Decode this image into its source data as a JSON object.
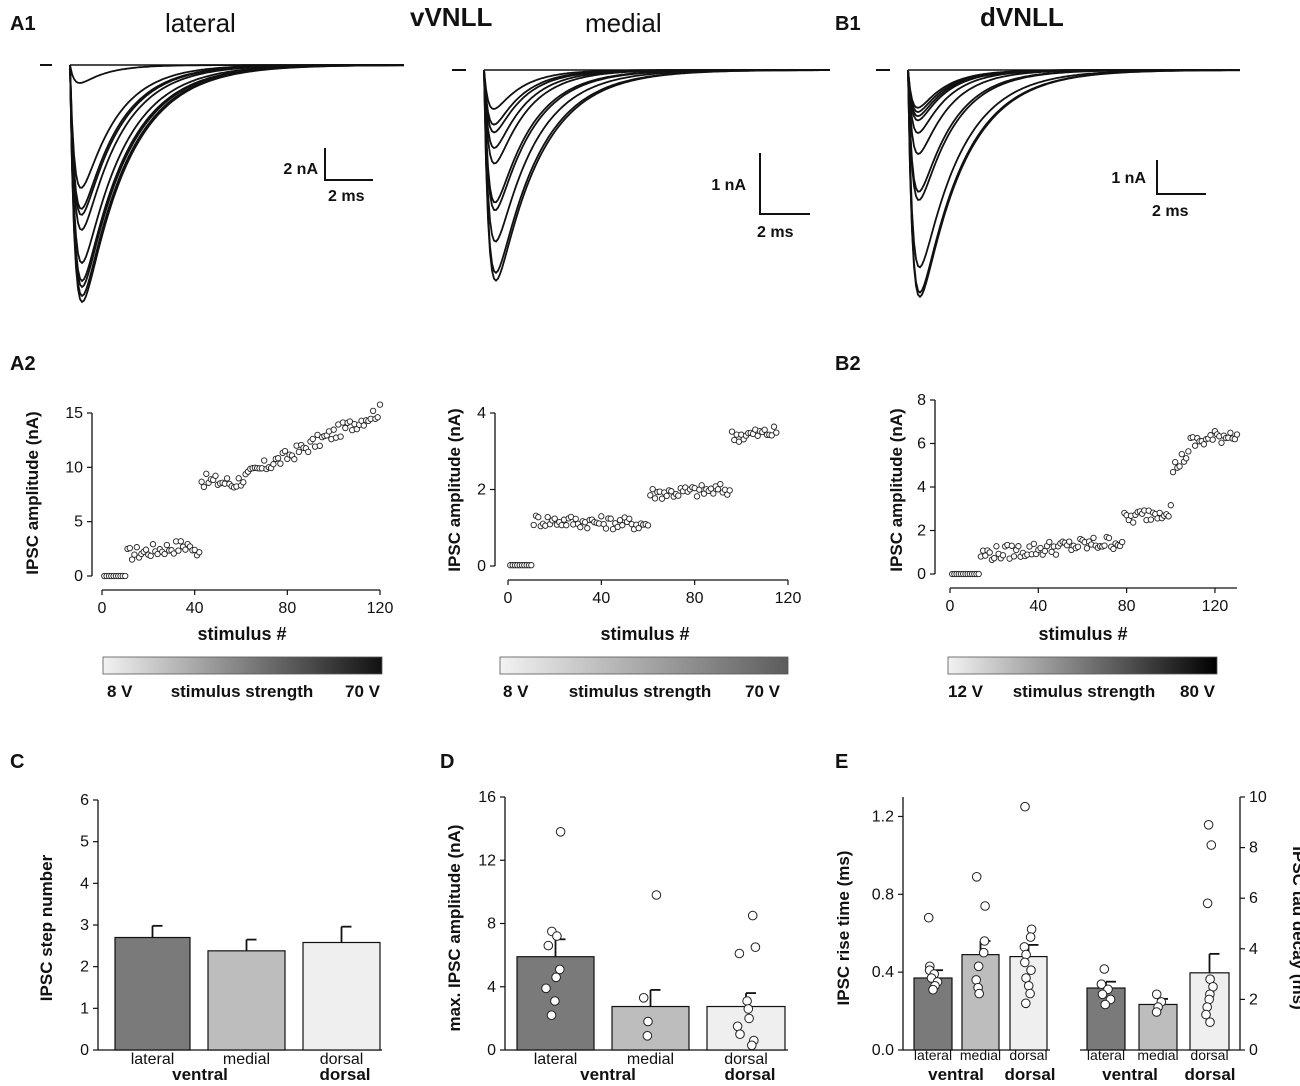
{
  "colors": {
    "ink": "#111111",
    "lateral": "#7a7a7a",
    "medial": "#bdbdbd",
    "dorsal": "#efefef"
  },
  "traces": {
    "A1": {
      "panel_label": "A1",
      "group_label": "vVNLL",
      "left": {
        "title": "lateral",
        "peaks": [
          0.6,
          4.1,
          4.8,
          5.0,
          5.5,
          6.6,
          7.2,
          7.4,
          7.7,
          7.9
        ],
        "scale": {
          "y_label": "2 nA",
          "x_label": "2 ms"
        }
      },
      "right": {
        "title": "medial",
        "peaks": [
          0.5,
          0.7,
          0.8,
          1.0,
          1.2,
          1.7,
          1.8,
          2.2,
          2.6,
          2.7
        ],
        "scale": {
          "y_label": "1 nA",
          "x_label": "2 ms"
        }
      }
    },
    "B1": {
      "panel_label": "B1",
      "group_label": "dVNLL",
      "peaks": [
        0.45,
        0.5,
        0.55,
        0.6,
        0.75,
        1.0,
        1.45,
        1.55,
        2.35,
        2.65,
        2.7
      ],
      "scale": {
        "y_label": "1 nA",
        "x_label": "2 ms"
      }
    }
  },
  "chart_data": [
    {
      "id": "A2-lateral",
      "type": "scatter",
      "panel_label": "A2",
      "xlabel": "stimulus #",
      "ylabel": "IPSC amplitude (nA)",
      "xlim": [
        0,
        120
      ],
      "ylim": [
        0,
        15
      ],
      "xticks": [
        0,
        40,
        80,
        120
      ],
      "yticks": [
        0,
        5,
        10,
        15
      ],
      "segments": [
        {
          "x": [
            1,
            10
          ],
          "y": [
            0.0,
            0.0
          ]
        },
        {
          "x": [
            11,
            38
          ],
          "y": [
            2.0,
            2.9
          ]
        },
        {
          "x": [
            39,
            42
          ],
          "y": [
            2.1,
            2.6
          ]
        },
        {
          "x": [
            43,
            55
          ],
          "y": [
            8.8,
            8.6
          ]
        },
        {
          "x": [
            56,
            75
          ],
          "y": [
            8.4,
            10.6
          ]
        },
        {
          "x": [
            76,
            120
          ],
          "y": [
            10.6,
            15.2
          ]
        }
      ],
      "gradient": {
        "left_label": "8 V",
        "center_label": "stimulus strength",
        "right_label": "70 V",
        "end_color": "#111111"
      }
    },
    {
      "id": "A2-medial",
      "type": "scatter",
      "xlabel": "stimulus #",
      "ylabel": "IPSC amplitude (nA)",
      "xlim": [
        0,
        120
      ],
      "ylim": [
        0,
        4
      ],
      "xticks": [
        0,
        40,
        80,
        120
      ],
      "yticks": [
        0,
        2,
        4
      ],
      "segments": [
        {
          "x": [
            1,
            10
          ],
          "y": [
            0.02,
            0.02
          ]
        },
        {
          "x": [
            11,
            60
          ],
          "y": [
            1.2,
            1.1
          ]
        },
        {
          "x": [
            61,
            95
          ],
          "y": [
            1.9,
            2.0
          ]
        },
        {
          "x": [
            96,
            115
          ],
          "y": [
            3.4,
            3.5
          ]
        }
      ],
      "gradient": {
        "left_label": "8 V",
        "center_label": "stimulus strength",
        "right_label": "70 V",
        "end_color": "#5c5c5c"
      }
    },
    {
      "id": "B2",
      "type": "scatter",
      "panel_label": "B2",
      "xlabel": "stimulus #",
      "ylabel": "IPSC amplitude (nA)",
      "xlim": [
        0,
        130
      ],
      "ylim": [
        0,
        8
      ],
      "xticks": [
        0,
        40,
        80,
        120
      ],
      "yticks": [
        0,
        2,
        4,
        6,
        8
      ],
      "segments": [
        {
          "x": [
            1,
            13
          ],
          "y": [
            0.0,
            0.0
          ]
        },
        {
          "x": [
            14,
            78
          ],
          "y": [
            0.9,
            1.5
          ]
        },
        {
          "x": [
            79,
            100
          ],
          "y": [
            2.5,
            3.0
          ]
        },
        {
          "x": [
            101,
            108
          ],
          "y": [
            4.8,
            5.6
          ]
        },
        {
          "x": [
            109,
            130
          ],
          "y": [
            6.0,
            6.5
          ]
        }
      ],
      "gradient": {
        "left_label": "12 V",
        "center_label": "stimulus strength",
        "right_label": "80 V",
        "end_color": "#000000"
      }
    },
    {
      "id": "C",
      "type": "bar",
      "panel_label": "C",
      "ylabel": "IPSC step number",
      "ylim": [
        0,
        6
      ],
      "yticks": [
        0,
        1,
        2,
        3,
        4,
        5,
        6
      ],
      "categories": [
        "lateral",
        "medial",
        "dorsal"
      ],
      "group_labels": [
        "ventral",
        "dorsal"
      ],
      "values": [
        2.7,
        2.38,
        2.58
      ],
      "errors": [
        0.28,
        0.27,
        0.38
      ],
      "points": [
        [],
        [],
        []
      ]
    },
    {
      "id": "D",
      "type": "bar",
      "panel_label": "D",
      "ylabel": "max. IPSC amplitude (nA)",
      "ylim": [
        0,
        16
      ],
      "yticks": [
        0,
        4,
        8,
        12,
        16
      ],
      "categories": [
        "lateral",
        "medial",
        "dorsal"
      ],
      "group_labels": [
        "ventral",
        "dorsal"
      ],
      "values": [
        5.9,
        2.75,
        2.75
      ],
      "errors": [
        1.1,
        1.05,
        0.85
      ],
      "points": [
        [
          13.8,
          7.5,
          7.2,
          6.6,
          5.1,
          4.6,
          3.9,
          3.1,
          2.2
        ],
        [
          9.8,
          3.3,
          1.8,
          0.9
        ],
        [
          8.5,
          6.5,
          6.1,
          3.1,
          2.6,
          2.0,
          1.5,
          1.0,
          0.6,
          0.3
        ]
      ]
    },
    {
      "id": "E-rise",
      "type": "bar",
      "panel_label": "E",
      "ylabel": "IPSC rise time (ms)",
      "ylim": [
        0,
        1.3
      ],
      "yticks": [
        0.0,
        0.4,
        0.8,
        1.2
      ],
      "categories": [
        "lateral",
        "medial",
        "dorsal"
      ],
      "group_labels": [
        "ventral",
        "dorsal"
      ],
      "values": [
        0.37,
        0.49,
        0.48
      ],
      "errors": [
        0.04,
        0.07,
        0.06
      ],
      "points": [
        [
          0.68,
          0.43,
          0.41,
          0.39,
          0.37,
          0.35,
          0.33,
          0.31
        ],
        [
          0.89,
          0.74,
          0.56,
          0.5,
          0.43,
          0.36,
          0.32,
          0.29
        ],
        [
          1.25,
          0.62,
          0.58,
          0.53,
          0.49,
          0.45,
          0.41,
          0.37,
          0.33,
          0.29,
          0.24
        ]
      ]
    },
    {
      "id": "E-tau",
      "type": "bar",
      "ylabel": "IPSC tau decay (ms)",
      "ylim": [
        0,
        10
      ],
      "yticks": [
        0,
        2,
        4,
        6,
        8,
        10
      ],
      "categories": [
        "lateral",
        "medial",
        "dorsal"
      ],
      "group_labels": [
        "ventral",
        "dorsal"
      ],
      "values": [
        2.45,
        1.8,
        3.05
      ],
      "errors": [
        0.25,
        0.22,
        0.75
      ],
      "points": [
        [
          3.2,
          2.6,
          2.4,
          2.2,
          2.0,
          1.8
        ],
        [
          2.2,
          1.9,
          1.7,
          1.5
        ],
        [
          8.9,
          8.1,
          5.8,
          2.8,
          2.5,
          2.2,
          2.0,
          1.7,
          1.4,
          1.1
        ]
      ]
    }
  ]
}
